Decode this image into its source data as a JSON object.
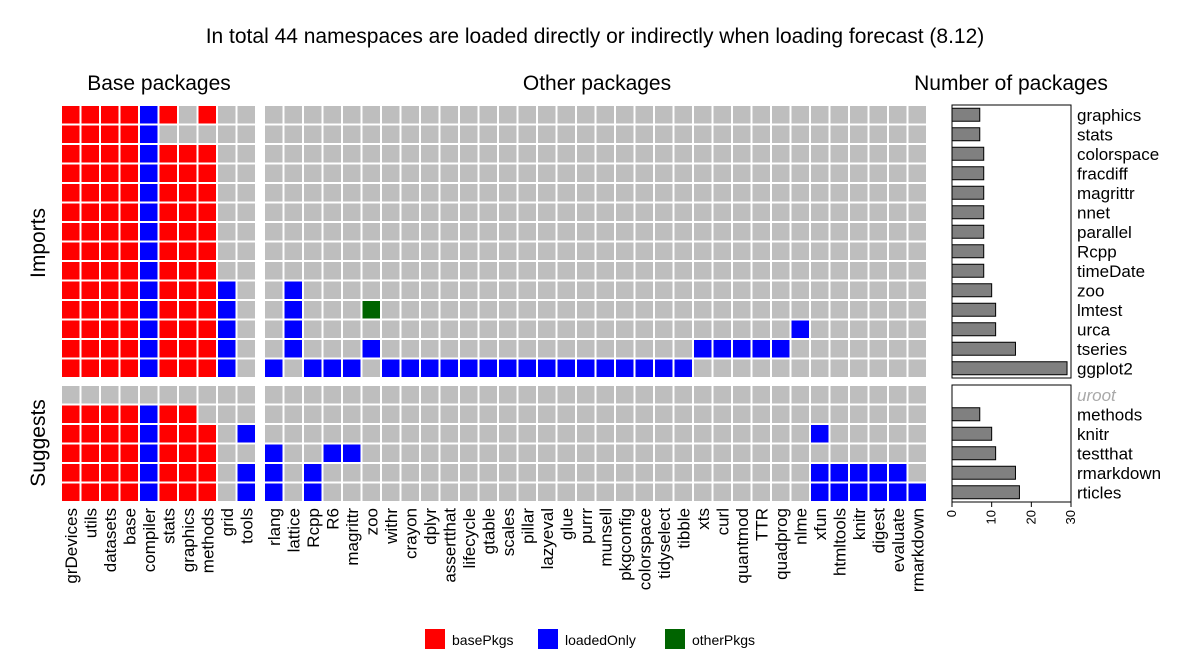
{
  "chart_data": {
    "type": "heatmap",
    "title": "In total 44 namespaces are loaded directly or indirectly when loading forecast (8.12)",
    "panels": {
      "base_title": "Base packages",
      "other_title": "Other packages",
      "count_title": "Number of packages"
    },
    "groups": {
      "imports": "Imports",
      "suggests": "Suggests"
    },
    "base_columns": [
      "grDevices",
      "utils",
      "datasets",
      "base",
      "compiler",
      "stats",
      "graphics",
      "methods",
      "grid",
      "tools"
    ],
    "other_columns": [
      "rlang",
      "lattice",
      "Rcpp",
      "R6",
      "magrittr",
      "zoo",
      "withr",
      "crayon",
      "dplyr",
      "assertthat",
      "lifecycle",
      "gtable",
      "scales",
      "pillar",
      "lazyeval",
      "glue",
      "purrr",
      "munsell",
      "pkgconfig",
      "colorspace",
      "tidyselect",
      "tibble",
      "xts",
      "curl",
      "quantmod",
      "TTR",
      "quadprog",
      "nlme",
      "xfun",
      "htmltools",
      "knitr",
      "digest",
      "evaluate",
      "rmarkdown"
    ],
    "imports_rows": [
      {
        "name": "graphics",
        "count": 7,
        "base": [
          1,
          1,
          1,
          1,
          2,
          1,
          0,
          1,
          0,
          0
        ],
        "other": []
      },
      {
        "name": "stats",
        "count": 7,
        "base": [
          1,
          1,
          1,
          1,
          2,
          0,
          0,
          0,
          0,
          0
        ],
        "other": []
      },
      {
        "name": "colorspace",
        "count": 8,
        "base": [
          1,
          1,
          1,
          1,
          2,
          1,
          1,
          1,
          0,
          0
        ],
        "other": []
      },
      {
        "name": "fracdiff",
        "count": 8,
        "base": [
          1,
          1,
          1,
          1,
          2,
          1,
          1,
          1,
          0,
          0
        ],
        "other": []
      },
      {
        "name": "magrittr",
        "count": 8,
        "base": [
          1,
          1,
          1,
          1,
          2,
          1,
          1,
          1,
          0,
          0
        ],
        "other": []
      },
      {
        "name": "nnet",
        "count": 8,
        "base": [
          1,
          1,
          1,
          1,
          2,
          1,
          1,
          1,
          0,
          0
        ],
        "other": []
      },
      {
        "name": "parallel",
        "count": 8,
        "base": [
          1,
          1,
          1,
          1,
          2,
          1,
          1,
          1,
          0,
          0
        ],
        "other": []
      },
      {
        "name": "Rcpp",
        "count": 8,
        "base": [
          1,
          1,
          1,
          1,
          2,
          1,
          1,
          1,
          0,
          0
        ],
        "other": []
      },
      {
        "name": "timeDate",
        "count": 8,
        "base": [
          1,
          1,
          1,
          1,
          2,
          1,
          1,
          1,
          0,
          0
        ],
        "other": []
      },
      {
        "name": "zoo",
        "count": 10,
        "base": [
          1,
          1,
          1,
          1,
          2,
          1,
          1,
          1,
          2,
          0
        ],
        "other": [
          [
            "lattice",
            2
          ]
        ]
      },
      {
        "name": "lmtest",
        "count": 11,
        "base": [
          1,
          1,
          1,
          1,
          2,
          1,
          1,
          1,
          2,
          0
        ],
        "other": [
          [
            "lattice",
            2
          ],
          [
            "zoo",
            3
          ]
        ]
      },
      {
        "name": "urca",
        "count": 11,
        "base": [
          1,
          1,
          1,
          1,
          2,
          1,
          1,
          1,
          2,
          0
        ],
        "other": [
          [
            "lattice",
            2
          ],
          [
            "nlme",
            2
          ]
        ]
      },
      {
        "name": "tseries",
        "count": 16,
        "base": [
          1,
          1,
          1,
          1,
          2,
          1,
          1,
          1,
          2,
          0
        ],
        "other": [
          [
            "lattice",
            2
          ],
          [
            "zoo",
            2
          ],
          [
            "xts",
            2
          ],
          [
            "curl",
            2
          ],
          [
            "quantmod",
            2
          ],
          [
            "TTR",
            2
          ],
          [
            "quadprog",
            2
          ]
        ]
      },
      {
        "name": "ggplot2",
        "count": 29,
        "base": [
          1,
          1,
          1,
          1,
          2,
          1,
          1,
          1,
          2,
          0
        ],
        "other": [
          [
            "rlang",
            2
          ],
          [
            "Rcpp",
            2
          ],
          [
            "R6",
            2
          ],
          [
            "magrittr",
            2
          ],
          [
            "withr",
            2
          ],
          [
            "crayon",
            2
          ],
          [
            "dplyr",
            2
          ],
          [
            "assertthat",
            2
          ],
          [
            "lifecycle",
            2
          ],
          [
            "gtable",
            2
          ],
          [
            "scales",
            2
          ],
          [
            "pillar",
            2
          ],
          [
            "lazyeval",
            2
          ],
          [
            "glue",
            2
          ],
          [
            "purrr",
            2
          ],
          [
            "munsell",
            2
          ],
          [
            "pkgconfig",
            2
          ],
          [
            "colorspace",
            2
          ],
          [
            "tidyselect",
            2
          ],
          [
            "tibble",
            2
          ]
        ]
      }
    ],
    "suggests_rows": [
      {
        "name": "uroot",
        "count": 0,
        "muted": true,
        "base": [
          0,
          0,
          0,
          0,
          0,
          0,
          0,
          0,
          0,
          0
        ],
        "other": []
      },
      {
        "name": "methods",
        "count": 7,
        "base": [
          1,
          1,
          1,
          1,
          2,
          1,
          1,
          0,
          0,
          0
        ],
        "other": []
      },
      {
        "name": "knitr",
        "count": 10,
        "base": [
          1,
          1,
          1,
          1,
          2,
          1,
          1,
          1,
          0,
          2
        ],
        "other": [
          [
            "xfun",
            2
          ]
        ]
      },
      {
        "name": "testthat",
        "count": 11,
        "base": [
          1,
          1,
          1,
          1,
          2,
          1,
          1,
          1,
          0,
          0
        ],
        "other": [
          [
            "rlang",
            2
          ],
          [
            "R6",
            2
          ],
          [
            "magrittr",
            2
          ]
        ]
      },
      {
        "name": "rmarkdown",
        "count": 16,
        "base": [
          1,
          1,
          1,
          1,
          2,
          1,
          1,
          1,
          0,
          2
        ],
        "other": [
          [
            "rlang",
            2
          ],
          [
            "Rcpp",
            2
          ],
          [
            "xfun",
            2
          ],
          [
            "htmltools",
            2
          ],
          [
            "knitr",
            2
          ],
          [
            "digest",
            2
          ],
          [
            "evaluate",
            2
          ]
        ]
      },
      {
        "name": "rticles",
        "count": 17,
        "base": [
          1,
          1,
          1,
          1,
          2,
          1,
          1,
          1,
          0,
          2
        ],
        "other": [
          [
            "rlang",
            2
          ],
          [
            "Rcpp",
            2
          ],
          [
            "xfun",
            2
          ],
          [
            "htmltools",
            2
          ],
          [
            "knitr",
            2
          ],
          [
            "digest",
            2
          ],
          [
            "evaluate",
            2
          ],
          [
            "rmarkdown",
            2
          ]
        ]
      }
    ],
    "count_axis": {
      "xlim": [
        0,
        30
      ],
      "ticks": [
        "0",
        "10",
        "20",
        "30"
      ]
    },
    "legend": {
      "placement": "bottom",
      "entries": [
        {
          "label": "basePkgs",
          "color": "#ff0000"
        },
        {
          "label": "loadedOnly",
          "color": "#0000ff"
        },
        {
          "label": "otherPkgs",
          "color": "#006400"
        }
      ]
    },
    "colors": {
      "empty": "#bebebe",
      "grid_line": "#ffffff",
      "bar_fill": "#808080",
      "bar_stroke": "#000000",
      "muted_label": "#a9a9a9"
    }
  }
}
